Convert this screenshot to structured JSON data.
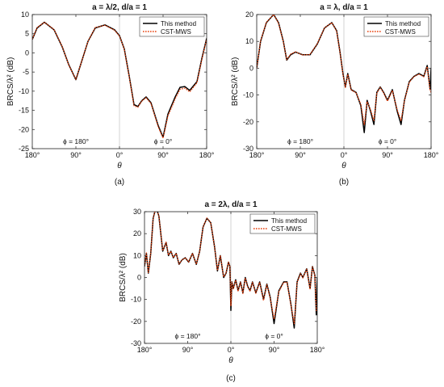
{
  "figure": {
    "sublabels": [
      "(a)",
      "(b)",
      "(c)"
    ]
  },
  "chart_data": [
    {
      "type": "line",
      "title": "a = λ/2, d/a = 1",
      "xlabel": "θ",
      "ylabel": "BRCS/λ² (dB)",
      "xtick_labels": [
        "180°",
        "90°",
        "0°",
        "90°",
        "180°"
      ],
      "ylim": [
        -25,
        10
      ],
      "yticks": [
        10,
        5,
        0,
        -5,
        -10,
        -15,
        -20,
        -25
      ],
      "x_axis_note": "x index: 0 = left end (180°, φ = 180°), 180 = center (0°), 360 = right end (180°, φ = 0°)",
      "region_labels": [
        "ϕ = 180°",
        "ϕ = 0°"
      ],
      "legend": [
        "This method",
        "CST-MWS"
      ],
      "legend_position": "top-right",
      "grid": false,
      "series": [
        {
          "name": "This method",
          "color": "#000000",
          "style": "solid",
          "x": [
            0,
            10,
            25,
            45,
            62,
            75,
            90,
            100,
            115,
            130,
            150,
            170,
            180,
            190,
            200,
            210,
            218,
            226,
            235,
            245,
            260,
            270,
            280,
            295,
            305,
            315,
            325,
            340,
            350,
            360
          ],
          "y": [
            3.5,
            6.5,
            8.0,
            6.0,
            1.5,
            -3.0,
            -7.0,
            -3.0,
            3.0,
            6.5,
            7.3,
            6.0,
            4.5,
            1.0,
            -6.0,
            -13.5,
            -14.0,
            -12.5,
            -11.5,
            -13.0,
            -19.0,
            -22.0,
            -16.0,
            -11.5,
            -9.0,
            -8.8,
            -9.8,
            -7.5,
            -1.5,
            3.8
          ]
        },
        {
          "name": "CST-MWS",
          "color": "#e8400c",
          "style": "dotted",
          "x": [
            0,
            10,
            25,
            45,
            62,
            75,
            90,
            100,
            115,
            130,
            150,
            170,
            180,
            190,
            200,
            210,
            218,
            226,
            235,
            245,
            260,
            270,
            280,
            295,
            305,
            315,
            325,
            340,
            350,
            360
          ],
          "y": [
            3.6,
            6.6,
            8.0,
            6.1,
            1.6,
            -3.1,
            -6.9,
            -3.0,
            3.0,
            6.6,
            7.2,
            5.9,
            4.4,
            0.9,
            -6.2,
            -13.8,
            -14.2,
            -12.6,
            -11.7,
            -13.2,
            -19.3,
            -22.3,
            -16.5,
            -12.0,
            -9.5,
            -9.2,
            -10.2,
            -7.8,
            -1.8,
            3.6
          ]
        }
      ]
    },
    {
      "type": "line",
      "title": "a = λ, d/a = 1",
      "xlabel": "θ",
      "ylabel": "BRCS/λ² (dB)",
      "xtick_labels": [
        "180°",
        "90°",
        "0°",
        "90°",
        "180°"
      ],
      "ylim": [
        -30,
        20
      ],
      "yticks": [
        20,
        10,
        0,
        -10,
        -20,
        -30
      ],
      "x_axis_note": "x index: 0 = left end (180°, φ = 180°), 180 = center (0°), 360 = right end (180°, φ = 0°)",
      "region_labels": [
        "ϕ = 180°",
        "ϕ = 0°"
      ],
      "legend": [
        "This method",
        "CST-MWS"
      ],
      "legend_position": "top-right",
      "grid": false,
      "series": [
        {
          "name": "This method",
          "color": "#000000",
          "style": "solid",
          "x": [
            0,
            8,
            20,
            35,
            45,
            55,
            62,
            70,
            80,
            95,
            110,
            125,
            140,
            155,
            165,
            172,
            178,
            183,
            188,
            195,
            205,
            215,
            222,
            228,
            235,
            242,
            248,
            255,
            262,
            270,
            280,
            290,
            298,
            305,
            315,
            325,
            335,
            345,
            352,
            358,
            360
          ],
          "y": [
            0,
            10,
            17,
            20,
            17,
            10,
            3,
            5,
            6,
            5,
            5,
            9,
            15,
            17,
            14,
            6,
            -2,
            -7,
            -2,
            -8,
            -9,
            -14,
            -24,
            -12,
            -16,
            -21,
            -9,
            -7,
            -9,
            -12,
            -8,
            -16,
            -21,
            -12,
            -5,
            -3,
            -2,
            -3,
            1,
            -8,
            0
          ]
        },
        {
          "name": "CST-MWS",
          "color": "#e8400c",
          "style": "dotted",
          "x": [
            0,
            8,
            20,
            35,
            45,
            55,
            62,
            70,
            80,
            95,
            110,
            125,
            140,
            155,
            165,
            172,
            178,
            183,
            188,
            195,
            205,
            215,
            222,
            228,
            235,
            242,
            248,
            255,
            262,
            270,
            280,
            290,
            298,
            305,
            315,
            325,
            335,
            345,
            352,
            358,
            360
          ],
          "y": [
            0,
            10.2,
            17.1,
            20,
            16.8,
            9.8,
            3.2,
            5.2,
            6.1,
            4.9,
            5.1,
            9.1,
            15,
            17,
            13.8,
            5.8,
            -2.2,
            -7.2,
            -2.3,
            -8.2,
            -9.1,
            -13.5,
            -21,
            -12.5,
            -15.5,
            -19.5,
            -9.3,
            -7.2,
            -9.2,
            -12.3,
            -8.3,
            -15.5,
            -19.5,
            -12.2,
            -5.2,
            -3.1,
            -2.2,
            -3.2,
            0.6,
            -8.5,
            -9
          ]
        }
      ]
    },
    {
      "type": "line",
      "title": "a = 2λ, d/a = 1",
      "xlabel": "θ",
      "ylabel": "BRCS/λ² (dB)",
      "xtick_labels": [
        "180°",
        "90°",
        "0°",
        "90°",
        "180°"
      ],
      "ylim": [
        -30,
        30
      ],
      "yticks": [
        30,
        20,
        10,
        0,
        -10,
        -20,
        -30
      ],
      "x_axis_note": "x index: 0 = left end (180°, φ = 180°), 180 = center (0°), 360 = right end (180°, φ = 0°)",
      "region_labels": [
        "ϕ = 180°",
        "ϕ = 0°"
      ],
      "legend": [
        "This method",
        "CST-MWS"
      ],
      "legend_position": "top-right",
      "grid": false,
      "series": [
        {
          "name": "This method",
          "color": "#000000",
          "style": "solid",
          "x": [
            0,
            4,
            8,
            13,
            18,
            24,
            30,
            38,
            45,
            50,
            55,
            60,
            66,
            72,
            78,
            85,
            92,
            100,
            108,
            115,
            122,
            130,
            138,
            146,
            152,
            158,
            165,
            170,
            175,
            178,
            180,
            182,
            185,
            190,
            195,
            200,
            205,
            210,
            215,
            220,
            225,
            232,
            240,
            248,
            255,
            262,
            270,
            280,
            290,
            297,
            305,
            312,
            318,
            325,
            330,
            338,
            345,
            350,
            355,
            358,
            360
          ],
          "y": [
            5,
            11,
            2,
            11,
            27,
            32,
            28,
            12,
            16,
            10,
            12,
            9,
            11,
            6,
            8,
            9,
            7,
            11,
            6,
            12,
            23,
            27,
            25,
            14,
            3,
            10,
            0,
            2,
            7,
            5,
            -15,
            -2,
            -5,
            -1,
            -6,
            -2,
            -7,
            0,
            -4,
            -6,
            -2,
            -7,
            -2,
            -10,
            -3,
            -9,
            -21,
            -6,
            -2,
            -2,
            -12,
            -23,
            -2,
            2,
            0,
            4,
            -5,
            5,
            1,
            -17,
            0
          ]
        },
        {
          "name": "CST-MWS",
          "color": "#e8400c",
          "style": "dotted",
          "x": [
            0,
            4,
            8,
            13,
            18,
            24,
            30,
            38,
            45,
            50,
            55,
            60,
            66,
            72,
            78,
            85,
            92,
            100,
            108,
            115,
            122,
            130,
            138,
            146,
            152,
            158,
            165,
            170,
            175,
            178,
            180,
            182,
            185,
            190,
            195,
            200,
            205,
            210,
            215,
            220,
            225,
            232,
            240,
            248,
            255,
            262,
            270,
            280,
            290,
            297,
            305,
            312,
            318,
            325,
            330,
            338,
            345,
            350,
            355,
            358,
            360
          ],
          "y": [
            5.5,
            11.2,
            2.3,
            11.1,
            27,
            32,
            28,
            12.2,
            16.1,
            10.2,
            12,
            9.1,
            11,
            6.2,
            8,
            9,
            7.1,
            11,
            6.1,
            12,
            23,
            27.1,
            25,
            14,
            3.2,
            10,
            0.3,
            2.1,
            7,
            5,
            -13,
            -2.2,
            -5.2,
            -1.2,
            -6.3,
            -2.2,
            -7.3,
            -0.2,
            -4.2,
            -6.3,
            -2.2,
            -7.2,
            -2.2,
            -10.5,
            -3.3,
            -9.5,
            -19,
            -6.5,
            -2.2,
            -2.2,
            -12.5,
            -21,
            -2.3,
            1.8,
            -0.2,
            3.8,
            -5.5,
            4.8,
            0.8,
            -15,
            -14
          ]
        }
      ]
    }
  ]
}
